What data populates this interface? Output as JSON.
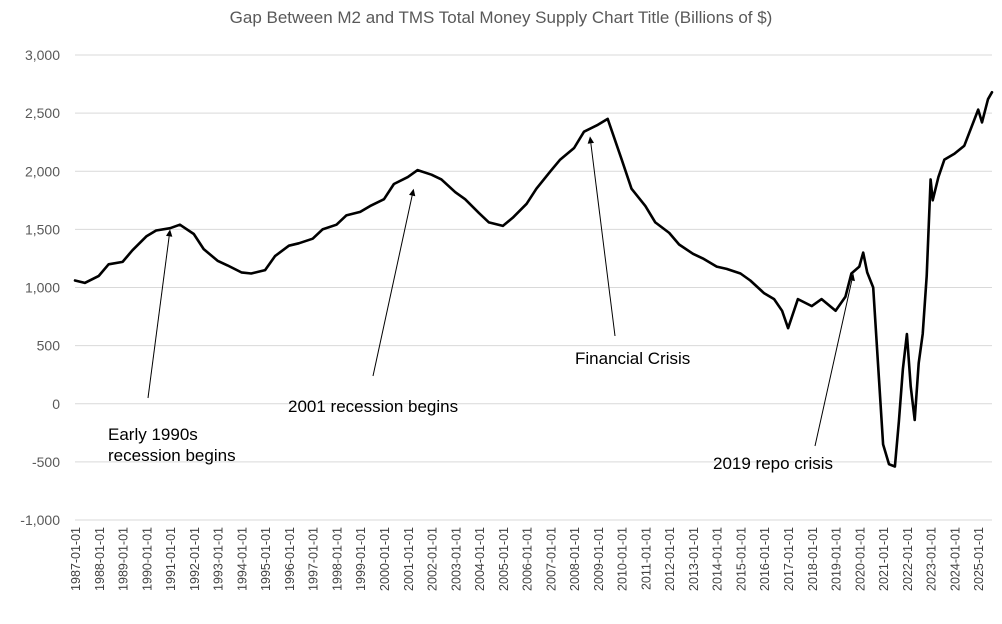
{
  "chart_data": {
    "type": "line",
    "title": "Gap Between M2 and TMS Total Money Supply Chart Title (Billions of $)",
    "xlabel": "",
    "ylabel": "",
    "ylim": [
      -1000,
      3000
    ],
    "xlim": [
      "1987-01-01",
      "2025-08-01"
    ],
    "grid": true,
    "legend": "none",
    "colors": {
      "line": "#000000",
      "grid": "#d9d9d9",
      "tick_text": "#595959",
      "title": "#595959"
    },
    "y_ticks": [
      -1000,
      -500,
      0,
      500,
      1000,
      1500,
      2000,
      2500,
      3000
    ],
    "y_tick_labels": [
      "-1,000",
      "-500",
      "0",
      "500",
      "1,000",
      "1,500",
      "2,000",
      "2,500",
      "3,000"
    ],
    "x_tick_labels": [
      "1987-01-01",
      "1988-01-01",
      "1989-01-01",
      "1990-01-01",
      "1991-01-01",
      "1992-01-01",
      "1993-01-01",
      "1994-01-01",
      "1995-01-01",
      "1996-01-01",
      "1997-01-01",
      "1998-01-01",
      "1999-01-01",
      "2000-01-01",
      "2001-01-01",
      "2002-01-01",
      "2003-01-01",
      "2004-01-01",
      "2005-01-01",
      "2006-01-01",
      "2007-01-01",
      "2008-01-01",
      "2009-01-01",
      "2010-01-01",
      "2011-01-01",
      "2012-01-01",
      "2013-01-01",
      "2014-01-01",
      "2015-01-01",
      "2016-01-01",
      "2017-01-01",
      "2018-01-01",
      "2019-01-01",
      "2020-01-01",
      "2021-01-01",
      "2022-01-01",
      "2023-01-01",
      "2024-01-01",
      "2025-01-01"
    ],
    "series": [
      {
        "name": "",
        "x": [
          "1987-01-01",
          "1987-06-01",
          "1988-01-01",
          "1988-06-01",
          "1989-01-01",
          "1989-06-01",
          "1990-01-01",
          "1990-06-01",
          "1991-01-01",
          "1991-06-01",
          "1992-01-01",
          "1992-06-01",
          "1993-01-01",
          "1993-06-01",
          "1994-01-01",
          "1994-06-01",
          "1995-01-01",
          "1995-06-01",
          "1996-01-01",
          "1996-06-01",
          "1997-01-01",
          "1997-06-01",
          "1998-01-01",
          "1998-06-01",
          "1999-01-01",
          "1999-06-01",
          "2000-01-01",
          "2000-06-01",
          "2001-01-01",
          "2001-06-01",
          "2002-01-01",
          "2002-06-01",
          "2003-01-01",
          "2003-06-01",
          "2004-01-01",
          "2004-06-01",
          "2005-01-01",
          "2005-06-01",
          "2006-01-01",
          "2006-06-01",
          "2007-01-01",
          "2007-06-01",
          "2008-01-01",
          "2008-06-01",
          "2009-01-01",
          "2009-06-01",
          "2010-01-01",
          "2010-06-01",
          "2011-01-01",
          "2011-06-01",
          "2012-01-01",
          "2012-06-01",
          "2013-01-01",
          "2013-06-01",
          "2014-01-01",
          "2014-06-01",
          "2015-01-01",
          "2015-06-01",
          "2016-01-01",
          "2016-06-01",
          "2016-10-01",
          "2017-01-01",
          "2017-06-01",
          "2018-01-01",
          "2018-06-01",
          "2019-01-01",
          "2019-06-01",
          "2019-09-01",
          "2020-01-01",
          "2020-03-01",
          "2020-05-01",
          "2020-08-01",
          "2021-01-01",
          "2021-04-01",
          "2021-07-01",
          "2021-09-01",
          "2021-11-01",
          "2022-01-01",
          "2022-03-01",
          "2022-05-01",
          "2022-07-01",
          "2022-09-01",
          "2022-11-01",
          "2023-01-01",
          "2023-02-01",
          "2023-05-01",
          "2023-08-01",
          "2024-01-01",
          "2024-06-01",
          "2025-01-01",
          "2025-03-01",
          "2025-06-01",
          "2025-08-01"
        ],
        "values": [
          1060,
          1040,
          1100,
          1200,
          1220,
          1320,
          1440,
          1490,
          1510,
          1540,
          1460,
          1330,
          1230,
          1190,
          1130,
          1120,
          1150,
          1270,
          1360,
          1380,
          1420,
          1500,
          1540,
          1620,
          1650,
          1700,
          1760,
          1890,
          1950,
          2010,
          1970,
          1930,
          1820,
          1760,
          1640,
          1560,
          1530,
          1600,
          1720,
          1850,
          2000,
          2100,
          2200,
          2340,
          2400,
          2450,
          2100,
          1850,
          1700,
          1560,
          1470,
          1370,
          1290,
          1250,
          1180,
          1160,
          1120,
          1060,
          950,
          900,
          800,
          650,
          900,
          840,
          900,
          800,
          920,
          1120,
          1180,
          1300,
          1130,
          1000,
          -350,
          -520,
          -540,
          -150,
          300,
          600,
          150,
          -140,
          350,
          600,
          1100,
          1930,
          1750,
          1950,
          2100,
          2150,
          2220,
          2530,
          2420,
          2620,
          2680
        ]
      }
    ],
    "annotations": [
      {
        "label": "Early 1990s\nrecession begins",
        "target_x": "1991-01-01",
        "target_y": 1500
      },
      {
        "label": "2001 recession begins",
        "target_x": "2001-04-01",
        "target_y": 1850
      },
      {
        "label": "Financial Crisis",
        "target_x": "2008-09-01",
        "target_y": 2300
      },
      {
        "label": "2019 repo crisis",
        "target_x": "2019-10-01",
        "target_y": 1120
      }
    ]
  }
}
